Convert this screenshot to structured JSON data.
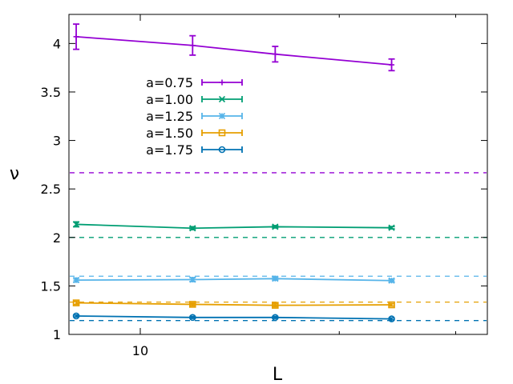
{
  "chart_data": {
    "type": "line",
    "title": "",
    "xlabel": "L",
    "ylabel": "ν",
    "xscale": "log",
    "xlim": [
      7.8,
      33.5
    ],
    "ylim": [
      1,
      4.3
    ],
    "xticks_major": [
      10
    ],
    "xticks_minor": [
      20,
      30
    ],
    "yticks": [
      1,
      1.5,
      2,
      2.5,
      3,
      3.5,
      4
    ],
    "ytick_labels": [
      "1",
      "1.5",
      "2",
      "2.5",
      "3",
      "3.5",
      "4"
    ],
    "xtick_labels": [
      "10"
    ],
    "legend_position": "upper-left-center",
    "x": [
      8,
      12,
      16,
      24
    ],
    "series": [
      {
        "name": "a=0.75",
        "color": "#9400d3",
        "marker": "plus",
        "values": [
          4.07,
          3.98,
          3.89,
          3.78
        ],
        "errors": [
          0.13,
          0.1,
          0.08,
          0.06
        ],
        "hline": 2.667
      },
      {
        "name": "a=1.00",
        "color": "#009e73",
        "marker": "cross",
        "values": [
          2.135,
          2.095,
          2.11,
          2.1
        ],
        "errors": [
          0.025,
          0.015,
          0.012,
          0.012
        ],
        "hline": 2.0
      },
      {
        "name": "a=1.25",
        "color": "#56b4e9",
        "marker": "star",
        "values": [
          1.56,
          1.565,
          1.575,
          1.555
        ],
        "errors": [
          0.02,
          0.02,
          0.015,
          0.015
        ],
        "hline": 1.6
      },
      {
        "name": "a=1.50",
        "color": "#e69f00",
        "marker": "square",
        "values": [
          1.325,
          1.31,
          1.3,
          1.305
        ],
        "errors": [
          0.015,
          0.015,
          0.015,
          0.012
        ],
        "hline": 1.333
      },
      {
        "name": "a=1.75",
        "color": "#0072b2",
        "marker": "circle",
        "values": [
          1.19,
          1.175,
          1.175,
          1.16
        ],
        "errors": [
          0.01,
          0.01,
          0.01,
          0.01
        ],
        "hline": 1.143
      }
    ]
  }
}
